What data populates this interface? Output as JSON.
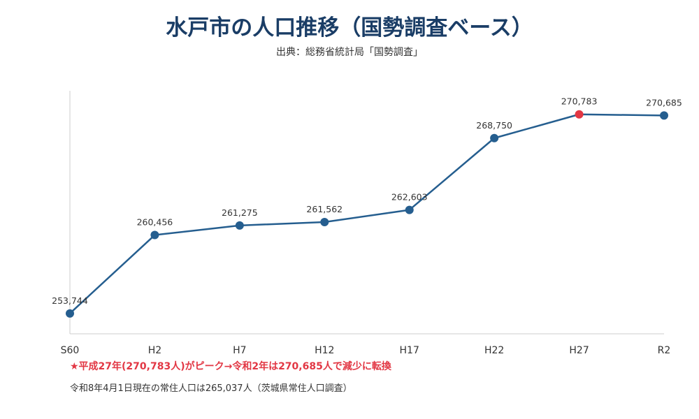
{
  "header": {
    "title": "水戸市の人口推移（国勢調査ベース）",
    "subtitle": "出典：総務省統計局「国勢調査」"
  },
  "notes": {
    "peak": "★平成27年(270,783人)がピーク→令和2年は270,685人で減少に転換",
    "current": "令和8年4月1日現在の常住人口は265,037人（茨城県常住人口調査）"
  },
  "colors": {
    "title": "#1a3d66",
    "line": "#255e8f",
    "marker": "#255e8f",
    "peak_marker": "#e23744",
    "axis": "#cccccc"
  },
  "chart_data": {
    "type": "line",
    "categories": [
      "S60",
      "H2",
      "H7",
      "H12",
      "H17",
      "H22",
      "H27",
      "R2"
    ],
    "series": [
      {
        "values": [
          253744,
          260456,
          261275,
          261562,
          262603,
          268750,
          270783,
          270685
        ],
        "labels": [
          "253,744",
          "260,456",
          "261,275",
          "261,562",
          "262,603",
          "268,750",
          "270,783",
          "270,685"
        ]
      }
    ],
    "peak_index": 6,
    "ylim": [
      252000,
      272800
    ],
    "grid": false,
    "title": "",
    "xlabel": "",
    "ylabel": ""
  }
}
